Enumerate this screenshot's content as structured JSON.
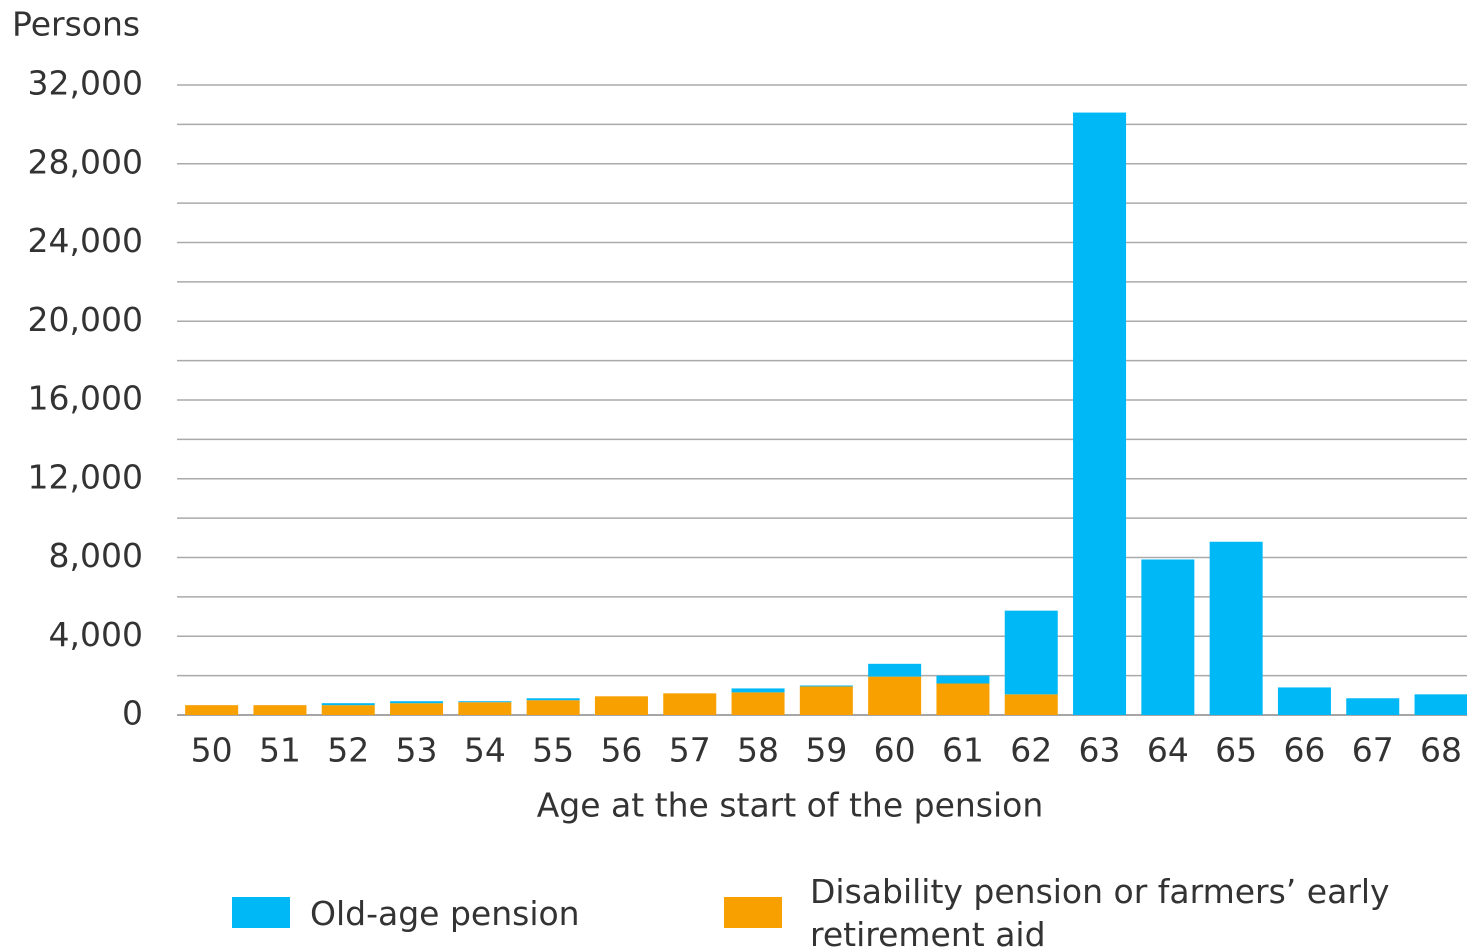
{
  "chart_data": {
    "type": "stacked_bar",
    "y_axis_label": "Persons",
    "x_axis_label": "Age at the start of the pension",
    "categories": [
      "50",
      "51",
      "52",
      "53",
      "54",
      "55",
      "56",
      "57",
      "58",
      "59",
      "60",
      "61",
      "62",
      "63",
      "64",
      "65",
      "66",
      "67",
      "68"
    ],
    "series": [
      {
        "name": "Old-age pension",
        "color": "#00b8f5",
        "values": [
          0,
          0,
          100,
          100,
          50,
          100,
          0,
          0,
          200,
          50,
          650,
          400,
          4250,
          30600,
          7900,
          8800,
          1400,
          850,
          1050
        ]
      },
      {
        "name": "Disability pension or farmers’ early retirement aid",
        "color": "#f7a000",
        "values": [
          500,
          500,
          500,
          600,
          650,
          750,
          950,
          1100,
          1150,
          1450,
          1950,
          1600,
          1050,
          0,
          0,
          0,
          0,
          0,
          0
        ]
      }
    ],
    "stack_order": "last_series_at_bottom",
    "ylim": [
      0,
      32000
    ],
    "yticks": [
      0,
      {
        "value": 4000,
        "label": "4,000"
      },
      {
        "value": 8000,
        "label": "8,000"
      },
      {
        "value": 12000,
        "label": "12,000"
      },
      {
        "value": 16000,
        "label": "16,000"
      },
      {
        "value": 20000,
        "label": "20,000"
      },
      {
        "value": 24000,
        "label": "24,000"
      },
      {
        "value": 28000,
        "label": "28,000"
      },
      {
        "value": 32000,
        "label": "32,000"
      }
    ],
    "minor_yticks": [
      2000,
      6000,
      10000,
      14000,
      18000,
      22000,
      26000,
      30000
    ],
    "grid": true,
    "legend": "bottom"
  }
}
